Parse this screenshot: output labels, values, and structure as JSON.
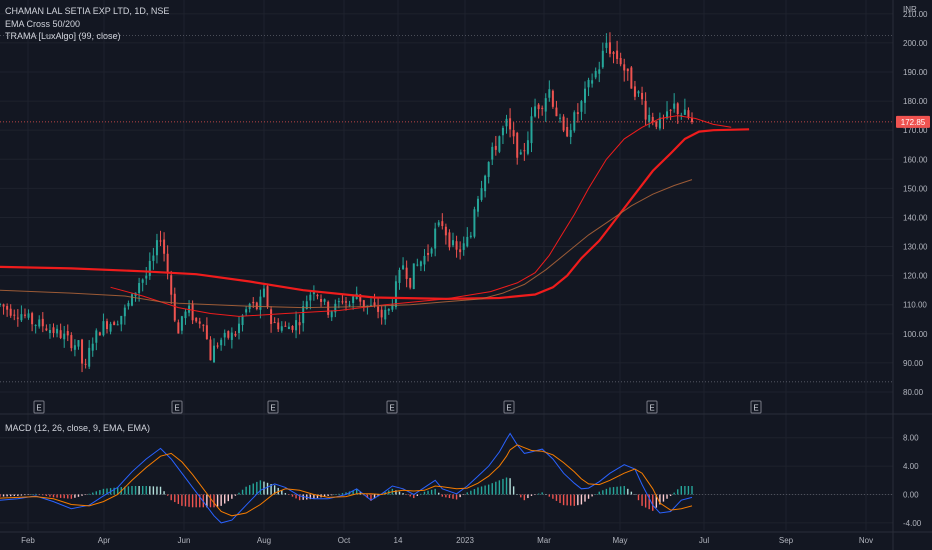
{
  "header": {
    "symbol_line": "CHAMAN LAL SETIA EXP LTD, 1D, NSE",
    "indicator_1": "EMA Cross 50/200",
    "indicator_2": "TRAMA [LuxAlgo] (99, close)",
    "currency": "INR"
  },
  "macd_header": {
    "label": "MACD (12, 26, close, 9, EMA, EMA)"
  },
  "colors": {
    "background": "#131722",
    "up": "#26a69a",
    "down": "#ef5350",
    "ema_fast": "#ef1c1c",
    "ema_slow": "#b4663a",
    "trama": "#ef1c1c",
    "macd_line": "#2962ff",
    "signal_line": "#f57c00",
    "price_label": "#ef5350"
  },
  "chart_data": [
    {
      "type": "candlestick",
      "title": "CHAMAN LAL SETIA EXP LTD, 1D, NSE",
      "ylim": [
        80,
        212
      ],
      "y_ticks": [
        "80.00",
        "90.00",
        "100.00",
        "110.00",
        "120.00",
        "130.00",
        "140.00",
        "150.00",
        "160.00",
        "170.00",
        "180.00",
        "190.00",
        "200.00",
        "210.00"
      ],
      "x_ticks": [
        "Feb",
        "Apr",
        "Jun",
        "Aug",
        "Oct",
        "14",
        "2023",
        "Mar",
        "May",
        "Jul",
        "Sep",
        "Nov"
      ],
      "current_price": "172.85",
      "high_line": 202.5,
      "low_line": 83.5,
      "earnings_markers": [
        "E",
        "E",
        "E",
        "E",
        "E",
        "E",
        "E"
      ],
      "price_path": [
        [
          0,
          110
        ],
        [
          6,
          108
        ],
        [
          12,
          107
        ],
        [
          18,
          104
        ],
        [
          24,
          103
        ],
        [
          30,
          101
        ],
        [
          36,
          99
        ],
        [
          40,
          97
        ],
        [
          44,
          96
        ],
        [
          46,
          90
        ],
        [
          48,
          88
        ],
        [
          50,
          94
        ],
        [
          52,
          98
        ],
        [
          58,
          103
        ],
        [
          66,
          105
        ],
        [
          70,
          108
        ],
        [
          74,
          112
        ],
        [
          78,
          118
        ],
        [
          82,
          120
        ],
        [
          86,
          126
        ],
        [
          88,
          130
        ],
        [
          90,
          134
        ],
        [
          92,
          128
        ],
        [
          95,
          118
        ],
        [
          98,
          106
        ],
        [
          100,
          100
        ],
        [
          102,
          106
        ],
        [
          106,
          108
        ],
        [
          110,
          104
        ],
        [
          114,
          105
        ],
        [
          116,
          98
        ],
        [
          118,
          92
        ],
        [
          120,
          95
        ],
        [
          124,
          98
        ],
        [
          128,
          99
        ],
        [
          132,
          100
        ],
        [
          136,
          106
        ],
        [
          140,
          110
        ],
        [
          144,
          109
        ],
        [
          146,
          111
        ],
        [
          148,
          114
        ],
        [
          150,
          110
        ],
        [
          152,
          104
        ],
        [
          156,
          103
        ],
        [
          160,
          102
        ],
        [
          164,
          103
        ],
        [
          168,
          105
        ],
        [
          172,
          112
        ],
        [
          176,
          116
        ],
        [
          180,
          112
        ],
        [
          184,
          108
        ],
        [
          188,
          109
        ],
        [
          192,
          112
        ],
        [
          196,
          110
        ],
        [
          200,
          114
        ],
        [
          204,
          110
        ],
        [
          208,
          109
        ],
        [
          212,
          108
        ],
        [
          214,
          106
        ],
        [
          218,
          108
        ],
        [
          222,
          116
        ],
        [
          226,
          124
        ],
        [
          230,
          118
        ],
        [
          232,
          122
        ],
        [
          236,
          125
        ],
        [
          240,
          128
        ],
        [
          244,
          135
        ],
        [
          248,
          138
        ],
        [
          252,
          132
        ],
        [
          256,
          128
        ],
        [
          260,
          130
        ],
        [
          264,
          134
        ],
        [
          266,
          144
        ],
        [
          268,
          148
        ],
        [
          272,
          156
        ],
        [
          276,
          162
        ],
        [
          280,
          168
        ],
        [
          284,
          172
        ],
        [
          288,
          166
        ],
        [
          292,
          160
        ],
        [
          296,
          168
        ],
        [
          300,
          178
        ],
        [
          304,
          180
        ],
        [
          308,
          184
        ],
        [
          312,
          176
        ],
        [
          316,
          168
        ],
        [
          320,
          172
        ],
        [
          324,
          176
        ],
        [
          328,
          182
        ],
        [
          332,
          188
        ],
        [
          336,
          192
        ],
        [
          338,
          196
        ],
        [
          340,
          200
        ],
        [
          344,
          196
        ],
        [
          348,
          194
        ],
        [
          352,
          188
        ],
        [
          356,
          184
        ],
        [
          360,
          180
        ],
        [
          362,
          176
        ],
        [
          366,
          174
        ],
        [
          370,
          172
        ],
        [
          374,
          174
        ],
        [
          378,
          178
        ],
        [
          382,
          176
        ],
        [
          386,
          174
        ],
        [
          388,
          172
        ]
      ],
      "series": [
        {
          "path": [
            [
              0,
              123
            ],
            [
              40,
              122.5
            ],
            [
              80,
              121.5
            ],
            [
              110,
              120.5
            ],
            [
              140,
              118
            ],
            [
              170,
              115
            ],
            [
              210,
              112.5
            ],
            [
              250,
              112
            ],
            [
              280,
              112.3
            ],
            [
              300,
              113.5
            ],
            [
              310,
              116
            ],
            [
              318,
              120
            ],
            [
              326,
              126
            ],
            [
              336,
              132
            ],
            [
              346,
              140
            ],
            [
              356,
              148
            ],
            [
              366,
              156
            ],
            [
              376,
              162
            ],
            [
              384,
              167
            ],
            [
              392,
              169.5
            ],
            [
              400,
              170
            ],
            [
              420,
              170.3
            ]
          ]
        },
        {
          "path": [
            [
              62,
              116
            ],
            [
              80,
              113
            ],
            [
              100,
              109
            ],
            [
              118,
              107
            ],
            [
              134,
              106
            ],
            [
              160,
              107
            ],
            [
              190,
              108
            ],
            [
              216,
              110
            ],
            [
              250,
              112
            ],
            [
              275,
              114.5
            ],
            [
              290,
              117.5
            ],
            [
              300,
              121
            ],
            [
              308,
              127
            ],
            [
              314,
              133
            ],
            [
              322,
              141
            ],
            [
              330,
              150
            ],
            [
              340,
              160
            ],
            [
              350,
              167
            ],
            [
              360,
              171
            ],
            [
              370,
              174
            ],
            [
              380,
              175
            ],
            [
              390,
              174
            ],
            [
              400,
              172
            ],
            [
              410,
              171
            ]
          ]
        },
        {
          "path": [
            [
              0,
              115
            ],
            [
              40,
              114
            ],
            [
              70,
              113
            ],
            [
              90,
              111
            ],
            [
              100,
              110.5
            ],
            [
              120,
              110
            ],
            [
              140,
              109.5
            ],
            [
              170,
              109
            ],
            [
              200,
              109.3
            ],
            [
              230,
              110
            ],
            [
              250,
              111
            ],
            [
              270,
              112
            ],
            [
              282,
              114
            ],
            [
              294,
              117
            ],
            [
              306,
              122
            ],
            [
              318,
              128
            ],
            [
              330,
              134
            ],
            [
              342,
              139
            ],
            [
              354,
              144
            ],
            [
              366,
              148
            ],
            [
              378,
              151
            ],
            [
              388,
              153
            ]
          ]
        }
      ]
    },
    {
      "type": "bar",
      "title": "MACD (12, 26, close, 9, EMA, EMA)",
      "ylim": [
        -5,
        10.5
      ],
      "y_ticks": [
        "-4.00",
        "0.00",
        "4.00",
        "8.00"
      ],
      "macd_path": [
        [
          0,
          -0.8
        ],
        [
          10,
          -0.6
        ],
        [
          20,
          -0.2
        ],
        [
          30,
          -1
        ],
        [
          40,
          -2
        ],
        [
          50,
          -1.5
        ],
        [
          58,
          -0.2
        ],
        [
          66,
          1
        ],
        [
          74,
          3.2
        ],
        [
          82,
          5
        ],
        [
          90,
          6.5
        ],
        [
          96,
          5
        ],
        [
          102,
          3
        ],
        [
          108,
          1
        ],
        [
          114,
          -1
        ],
        [
          120,
          -3
        ],
        [
          124,
          -4
        ],
        [
          130,
          -3.6
        ],
        [
          138,
          -1.5
        ],
        [
          146,
          0.6
        ],
        [
          154,
          1.5
        ],
        [
          160,
          1
        ],
        [
          168,
          -0.2
        ],
        [
          176,
          -0.6
        ],
        [
          184,
          -0.6
        ],
        [
          194,
          0
        ],
        [
          200,
          0.8
        ],
        [
          208,
          -0.8
        ],
        [
          214,
          0.1
        ],
        [
          220,
          1.2
        ],
        [
          226,
          0.8
        ],
        [
          232,
          0
        ],
        [
          238,
          1
        ],
        [
          244,
          2
        ],
        [
          248,
          0.8
        ],
        [
          256,
          0.1
        ],
        [
          262,
          1.2
        ],
        [
          268,
          2.6
        ],
        [
          274,
          4
        ],
        [
          280,
          6
        ],
        [
          284,
          7.8
        ],
        [
          286,
          8.6
        ],
        [
          290,
          7
        ],
        [
          294,
          5.8
        ],
        [
          298,
          6
        ],
        [
          304,
          6.4
        ],
        [
          310,
          5
        ],
        [
          316,
          3
        ],
        [
          322,
          1.6
        ],
        [
          326,
          0.8
        ],
        [
          330,
          0.9
        ],
        [
          336,
          1.8
        ],
        [
          342,
          3
        ],
        [
          350,
          4.2
        ],
        [
          356,
          3.6
        ],
        [
          360,
          1.4
        ],
        [
          366,
          -1.5
        ],
        [
          370,
          -2.6
        ],
        [
          376,
          -2.4
        ],
        [
          382,
          -0.8
        ],
        [
          388,
          -0.4
        ]
      ],
      "signal_path": [
        [
          0,
          -0.5
        ],
        [
          10,
          -0.4
        ],
        [
          20,
          -0.3
        ],
        [
          30,
          -0.6
        ],
        [
          40,
          -1.4
        ],
        [
          50,
          -1.6
        ],
        [
          58,
          -1
        ],
        [
          66,
          0
        ],
        [
          74,
          2
        ],
        [
          82,
          3.8
        ],
        [
          90,
          5.4
        ],
        [
          96,
          5.8
        ],
        [
          102,
          4.6
        ],
        [
          108,
          2.8
        ],
        [
          114,
          0.8
        ],
        [
          120,
          -1.2
        ],
        [
          124,
          -2.4
        ],
        [
          130,
          -3
        ],
        [
          138,
          -2.6
        ],
        [
          146,
          -1.4
        ],
        [
          154,
          0.2
        ],
        [
          160,
          0.8
        ],
        [
          168,
          0.6
        ],
        [
          176,
          0
        ],
        [
          184,
          -0.4
        ],
        [
          194,
          -0.3
        ],
        [
          200,
          0.1
        ],
        [
          208,
          0.1
        ],
        [
          214,
          0
        ],
        [
          220,
          0.4
        ],
        [
          226,
          0.6
        ],
        [
          232,
          0.5
        ],
        [
          238,
          0.6
        ],
        [
          244,
          1.2
        ],
        [
          248,
          1.1
        ],
        [
          256,
          0.8
        ],
        [
          262,
          0.9
        ],
        [
          268,
          1.6
        ],
        [
          274,
          2.6
        ],
        [
          280,
          4
        ],
        [
          284,
          5.4
        ],
        [
          286,
          6.3
        ],
        [
          290,
          7
        ],
        [
          294,
          6.6
        ],
        [
          298,
          6.2
        ],
        [
          304,
          6.1
        ],
        [
          310,
          5.6
        ],
        [
          316,
          4.5
        ],
        [
          322,
          3.2
        ],
        [
          326,
          2.2
        ],
        [
          330,
          1.5
        ],
        [
          336,
          1.4
        ],
        [
          342,
          2
        ],
        [
          350,
          3
        ],
        [
          356,
          3.6
        ],
        [
          360,
          3
        ],
        [
          366,
          0.8
        ],
        [
          370,
          -1.2
        ],
        [
          376,
          -2.2
        ],
        [
          382,
          -2
        ],
        [
          388,
          -1.6
        ]
      ]
    }
  ]
}
